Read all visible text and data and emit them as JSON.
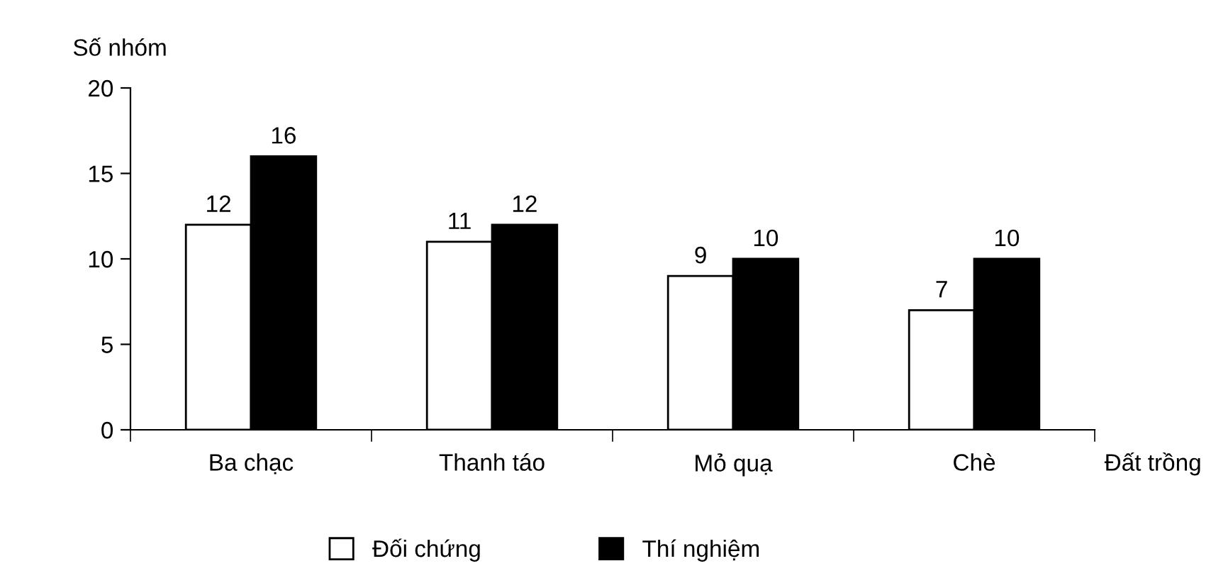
{
  "chart_data": {
    "type": "bar",
    "ylabel": "Số nhóm",
    "xlabel": "Đất trồng",
    "categories": [
      "Ba chạc",
      "Thanh táo",
      "Mỏ quạ",
      "Chè"
    ],
    "series": [
      {
        "name": "Đối chứng",
        "color": "#ffffff",
        "values": [
          12,
          11,
          9,
          7
        ]
      },
      {
        "name": "Thí nghiệm",
        "color": "#000000",
        "values": [
          16,
          12,
          10,
          10
        ]
      }
    ],
    "ylim": [
      0,
      20
    ],
    "yticks": [
      0,
      5,
      10,
      15,
      20
    ],
    "grid": false,
    "legend": "bottom",
    "data_labels": true
  }
}
